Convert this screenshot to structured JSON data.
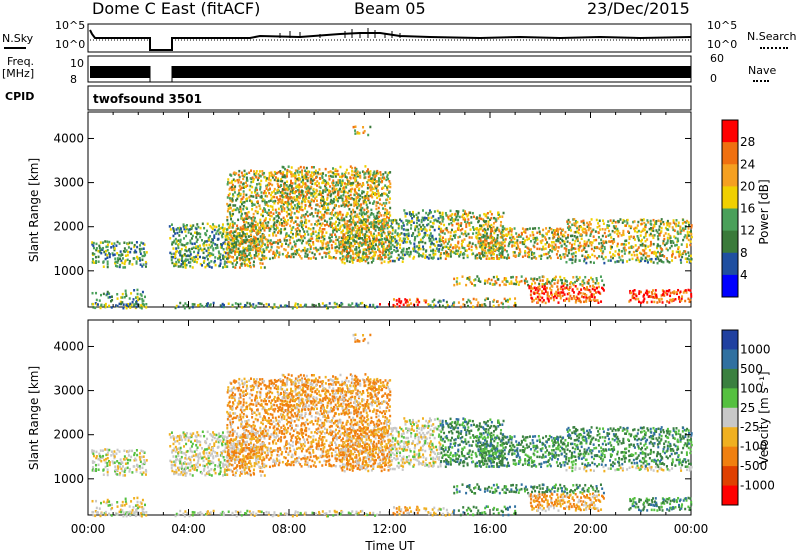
{
  "header": {
    "title": "Dome C East (fitACF)",
    "beam": "Beam 05",
    "date": "23/Dec/2015"
  },
  "panels": {
    "sky": {
      "label": "N.Sky",
      "ytick_top": "10^5",
      "ytick_bottom": "10^0",
      "right_label": "N.Search",
      "right_tick_top": "10^5",
      "right_tick_bottom": "10^0"
    },
    "freq": {
      "label_line1": "Freq.",
      "label_line2": "[MHz]",
      "ytick_top": "10",
      "ytick_bottom": "8",
      "right_label": "Nave",
      "right_tick_top": "60",
      "right_tick_bottom": "0"
    },
    "cpid": {
      "label": "CPID",
      "value": "twofsound 3501"
    }
  },
  "colors": {
    "power": [
      "#0000ff",
      "#1f4fa0",
      "#3a7a3a",
      "#4aa05a",
      "#f0d000",
      "#f5a020",
      "#f07010",
      "#ff0000"
    ],
    "velocity": [
      "#2040a0",
      "#3070a0",
      "#3a8040",
      "#55c040",
      "#c8c8c8",
      "#f0b020",
      "#f08010",
      "#e04000",
      "#ff0000"
    ]
  },
  "chart_data": [
    {
      "type": "heatmap",
      "name": "power",
      "xlabel": "",
      "ylabel": "Slant Range [km]",
      "xticks": [
        "00:00",
        "04:00",
        "08:00",
        "12:00",
        "16:00",
        "20:00",
        "00:00"
      ],
      "yticks": [
        "1000",
        "2000",
        "3000",
        "4000"
      ],
      "ylim": [
        180,
        4600
      ],
      "colorbar_label": "Power [dB]",
      "colorbar_ticks": [
        "4",
        "8",
        "12",
        "16",
        "20",
        "24",
        "28"
      ],
      "colorbar_range": [
        0,
        32
      ]
    },
    {
      "type": "heatmap",
      "name": "velocity",
      "xlabel": "Time UT",
      "ylabel": "Slant Range [km]",
      "xticks": [
        "00:00",
        "04:00",
        "08:00",
        "12:00",
        "16:00",
        "20:00",
        "00:00"
      ],
      "yticks": [
        "1000",
        "2000",
        "3000",
        "4000"
      ],
      "ylim": [
        180,
        4600
      ],
      "colorbar_label": "Velocity [m s⁻¹]",
      "colorbar_ticks": [
        "1000",
        "500",
        "100",
        "25",
        "-25",
        "-100",
        "-500",
        "-1000"
      ]
    }
  ]
}
